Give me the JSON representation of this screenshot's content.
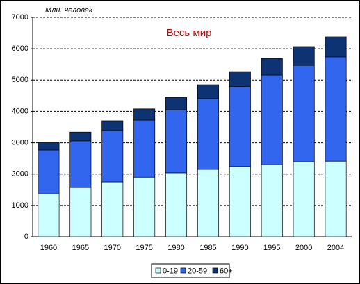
{
  "chart_data": {
    "type": "stacked_bar",
    "title": "Весь мир",
    "y_label": "Млн. человек",
    "categories": [
      "1960",
      "1965",
      "1970",
      "1975",
      "1980",
      "1985",
      "1990",
      "1995",
      "2000",
      "2004"
    ],
    "series": [
      {
        "name": "0-19",
        "color": "#ccffff",
        "values": [
          1370,
          1570,
          1750,
          1900,
          2040,
          2150,
          2240,
          2300,
          2390,
          2410
        ]
      },
      {
        "name": "20-59",
        "color": "#3366ee",
        "values": [
          1400,
          1490,
          1640,
          1820,
          2010,
          2260,
          2550,
          2860,
          3080,
          3330
        ]
      },
      {
        "name": "60+",
        "color": "#0e3373",
        "values": [
          240,
          280,
          310,
          360,
          400,
          440,
          480,
          530,
          600,
          640
        ]
      }
    ],
    "ylim": [
      0,
      7000
    ],
    "yticks": [
      0,
      1000,
      2000,
      3000,
      4000,
      5000,
      6000,
      7000
    ],
    "grid": true,
    "legend": "bottom"
  }
}
